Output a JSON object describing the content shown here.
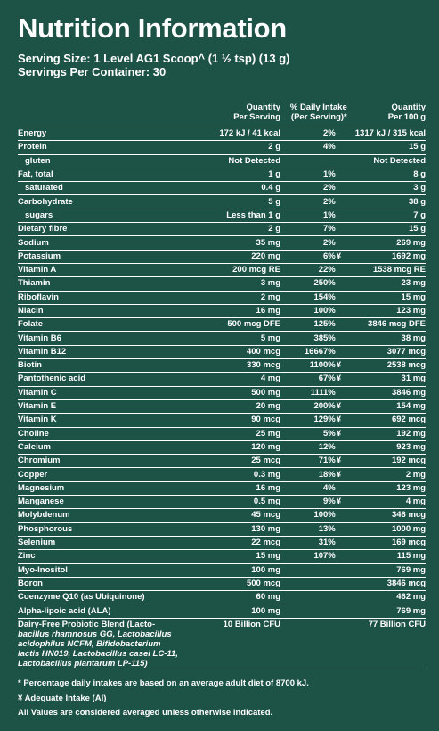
{
  "title": "Nutrition Information",
  "serving_size": "Serving Size: 1 Level AG1 Scoop^ (1 ½ tsp) (13 g)",
  "servings_per_container": "Servings Per Container: 30",
  "columns": {
    "per_serving": [
      "Quantity",
      "Per Serving"
    ],
    "daily_intake": [
      "% Daily Intake",
      "(Per Serving)*"
    ],
    "per_100g": [
      "Quantity",
      "Per 100 g"
    ]
  },
  "rows": [
    {
      "name": "Energy",
      "serving": "172 kJ / 41 kcal",
      "di": "2%",
      "mark": "",
      "per100": "1317 kJ / 315 kcal",
      "sub": false
    },
    {
      "name": "Protein",
      "serving": "2 g",
      "di": "4%",
      "mark": "",
      "per100": "15 g",
      "sub": false
    },
    {
      "name": "gluten",
      "serving": "Not Detected",
      "di": "",
      "mark": "",
      "per100": "Not Detected",
      "sub": true
    },
    {
      "name": "Fat, total",
      "serving": "1 g",
      "di": "1%",
      "mark": "",
      "per100": "8 g",
      "sub": false
    },
    {
      "name": "saturated",
      "serving": "0.4 g",
      "di": "2%",
      "mark": "",
      "per100": "3 g",
      "sub": true
    },
    {
      "name": "Carbohydrate",
      "serving": "5 g",
      "di": "2%",
      "mark": "",
      "per100": "38 g",
      "sub": false
    },
    {
      "name": "sugars",
      "serving": "Less than 1 g",
      "di": "1%",
      "mark": "",
      "per100": "7 g",
      "sub": true
    },
    {
      "name": "Dietary fibre",
      "serving": "2 g",
      "di": "7%",
      "mark": "",
      "per100": "15 g",
      "sub": false
    },
    {
      "name": "Sodium",
      "serving": "35 mg",
      "di": "2%",
      "mark": "",
      "per100": "269 mg",
      "sub": false
    },
    {
      "name": "Potassium",
      "serving": "220 mg",
      "di": "6%",
      "mark": "¥",
      "per100": "1692 mg",
      "sub": false
    },
    {
      "name": "Vitamin A",
      "serving": "200 mcg RE",
      "di": "22%",
      "mark": "",
      "per100": "1538 mcg RE",
      "sub": false
    },
    {
      "name": "Thiamin",
      "serving": "3 mg",
      "di": "250%",
      "mark": "",
      "per100": "23 mg",
      "sub": false
    },
    {
      "name": "Riboflavin",
      "serving": "2 mg",
      "di": "154%",
      "mark": "",
      "per100": "15 mg",
      "sub": false
    },
    {
      "name": "Niacin",
      "serving": "16 mg",
      "di": "100%",
      "mark": "",
      "per100": "123 mg",
      "sub": false
    },
    {
      "name": "Folate",
      "serving": "500 mcg DFE",
      "di": "125%",
      "mark": "",
      "per100": "3846 mcg DFE",
      "sub": false
    },
    {
      "name": "Vitamin B6",
      "serving": "5 mg",
      "di": "385%",
      "mark": "",
      "per100": "38 mg",
      "sub": false
    },
    {
      "name": "Vitamin B12",
      "serving": "400 mcg",
      "di": "16667%",
      "mark": "",
      "per100": "3077 mcg",
      "sub": false
    },
    {
      "name": "Biotin",
      "serving": "330 mcg",
      "di": "1100%",
      "mark": "¥",
      "per100": "2538 mcg",
      "sub": false
    },
    {
      "name": "Pantothenic acid",
      "serving": "4 mg",
      "di": "67%",
      "mark": "¥",
      "per100": "31 mg",
      "sub": false
    },
    {
      "name": "Vitamin C",
      "serving": "500 mg",
      "di": "1111%",
      "mark": "",
      "per100": "3846 mg",
      "sub": false
    },
    {
      "name": "Vitamin E",
      "serving": "20 mg",
      "di": "200%",
      "mark": "¥",
      "per100": "154 mg",
      "sub": false
    },
    {
      "name": "Vitamin K",
      "serving": "90 mcg",
      "di": "129%",
      "mark": "¥",
      "per100": "692 mcg",
      "sub": false
    },
    {
      "name": "Choline",
      "serving": "25 mg",
      "di": "5%",
      "mark": "¥",
      "per100": "192 mg",
      "sub": false
    },
    {
      "name": "Calcium",
      "serving": "120 mg",
      "di": "12%",
      "mark": "",
      "per100": "923 mg",
      "sub": false
    },
    {
      "name": "Chromium",
      "serving": "25 mcg",
      "di": "71%",
      "mark": "¥",
      "per100": "192 mcg",
      "sub": false
    },
    {
      "name": "Copper",
      "serving": "0.3 mg",
      "di": "18%",
      "mark": "¥",
      "per100": "2 mg",
      "sub": false
    },
    {
      "name": "Magnesium",
      "serving": "16 mg",
      "di": "4%",
      "mark": "",
      "per100": "123 mg",
      "sub": false
    },
    {
      "name": "Manganese",
      "serving": "0.5 mg",
      "di": "9%",
      "mark": "¥",
      "per100": "4 mg",
      "sub": false
    },
    {
      "name": "Molybdenum",
      "serving": "45 mcg",
      "di": "100%",
      "mark": "",
      "per100": "346 mcg",
      "sub": false
    },
    {
      "name": "Phosphorous",
      "serving": "130 mg",
      "di": "13%",
      "mark": "",
      "per100": "1000 mg",
      "sub": false
    },
    {
      "name": "Selenium",
      "serving": "22 mcg",
      "di": "31%",
      "mark": "",
      "per100": "169 mcg",
      "sub": false
    },
    {
      "name": "Zinc",
      "serving": "15 mg",
      "di": "107%",
      "mark": "",
      "per100": "115 mg",
      "sub": false
    },
    {
      "name": "Myo-Inositol",
      "serving": "100 mg",
      "di": "",
      "mark": "",
      "per100": "769 mg",
      "sub": false
    },
    {
      "name": "Boron",
      "serving": "500 mcg",
      "di": "",
      "mark": "",
      "per100": "3846 mcg",
      "sub": false
    },
    {
      "name": "Coenzyme Q10 (as Ubiquinone)",
      "serving": "60 mg",
      "di": "",
      "mark": "",
      "per100": "462 mg",
      "sub": false
    },
    {
      "name": "Alpha-lipoic acid (ALA)",
      "serving": "100 mg",
      "di": "",
      "mark": "",
      "per100": "769 mg",
      "sub": false
    }
  ],
  "probiotic": {
    "name_lines": [
      "Dairy-Free Probiotic Blend (Lacto-",
      "bacillus rhamnosus GG, Lactobacillus",
      "acidophilus NCFM, Bifidobacterium",
      "lactis HN019, Lactobacillus casei LC-11,",
      "Lactobacillus plantarum LP-115)"
    ],
    "serving": "10 Billion CFU",
    "per100": "77 Billion CFU"
  },
  "footnotes": [
    "* Percentage daily intakes are based on an average adult diet of 8700 kJ.",
    "¥ Adequate Intake (AI)",
    "All Values are considered averaged unless otherwise indicated."
  ]
}
